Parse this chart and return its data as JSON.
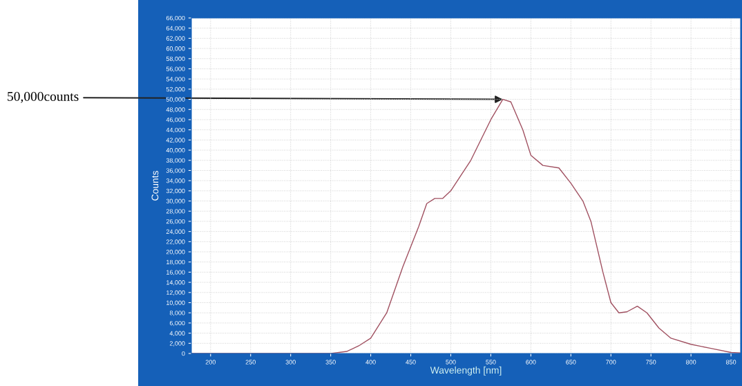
{
  "chart_data": {
    "type": "line",
    "xlabel": "Wavelength [nm]",
    "ylabel": "Counts",
    "x": [
      176,
      300,
      350,
      370,
      385,
      400,
      420,
      440,
      460,
      470,
      480,
      490,
      500,
      525,
      550,
      565,
      575,
      590,
      600,
      615,
      635,
      650,
      665,
      675,
      690,
      700,
      710,
      720,
      733,
      745,
      760,
      775,
      800,
      825,
      850,
      862
    ],
    "series": [
      {
        "color": "#a05060",
        "values": [
          0,
          0,
          0,
          400,
          1500,
          3000,
          8000,
          17000,
          25000,
          29500,
          30500,
          30500,
          32000,
          38000,
          46000,
          50000,
          49500,
          44000,
          39000,
          37000,
          36500,
          33500,
          30000,
          26000,
          16000,
          10000,
          8000,
          8200,
          9300,
          8000,
          5000,
          3000,
          1800,
          1000,
          200,
          100
        ]
      }
    ],
    "xlim": [
      176,
      862
    ],
    "xticks": [
      200,
      250,
      300,
      350,
      400,
      450,
      500,
      550,
      600,
      650,
      700,
      750,
      800,
      850
    ],
    "ylim": [
      0,
      66000
    ],
    "yticks": [
      {
        "value": 0,
        "label": "0"
      },
      {
        "value": 2000,
        "label": "2,000"
      },
      {
        "value": 4000,
        "label": "4,000"
      },
      {
        "value": 6000,
        "label": "6,000"
      },
      {
        "value": 8000,
        "label": "8,000"
      },
      {
        "value": 10000,
        "label": "10,000"
      },
      {
        "value": 12000,
        "label": "12,000"
      },
      {
        "value": 14000,
        "label": "14,000"
      },
      {
        "value": 16000,
        "label": "16,000"
      },
      {
        "value": 18000,
        "label": "18,000"
      },
      {
        "value": 20000,
        "label": "20,000"
      },
      {
        "value": 22000,
        "label": "22,000"
      },
      {
        "value": 24000,
        "label": "24,000"
      },
      {
        "value": 26000,
        "label": "26,000"
      },
      {
        "value": 28000,
        "label": "28,000"
      },
      {
        "value": 30000,
        "label": "30,000"
      },
      {
        "value": 32000,
        "label": "32,000"
      },
      {
        "value": 34000,
        "label": "34,000"
      },
      {
        "value": 36000,
        "label": "36,000"
      },
      {
        "value": 38000,
        "label": "38,000"
      },
      {
        "value": 40000,
        "label": "40,000"
      },
      {
        "value": 42000,
        "label": "42,000"
      },
      {
        "value": 44000,
        "label": "44,000"
      },
      {
        "value": 46000,
        "label": "46,000"
      },
      {
        "value": 48000,
        "label": "48,000"
      },
      {
        "value": 50000,
        "label": "50,000"
      },
      {
        "value": 52000,
        "label": "52,000"
      },
      {
        "value": 54000,
        "label": "54,000"
      },
      {
        "value": 56000,
        "label": "56,000"
      },
      {
        "value": 58000,
        "label": "58,000"
      },
      {
        "value": 60000,
        "label": "60,000"
      },
      {
        "value": 62000,
        "label": "62,000"
      },
      {
        "value": 64000,
        "label": "64,000"
      },
      {
        "value": 66000,
        "label": "66,000"
      }
    ],
    "grid": true,
    "line_style": "solid",
    "marker": "none",
    "legend": false,
    "annotations": [
      {
        "text": "50,000counts",
        "x": 565,
        "y": 50000
      }
    ]
  }
}
